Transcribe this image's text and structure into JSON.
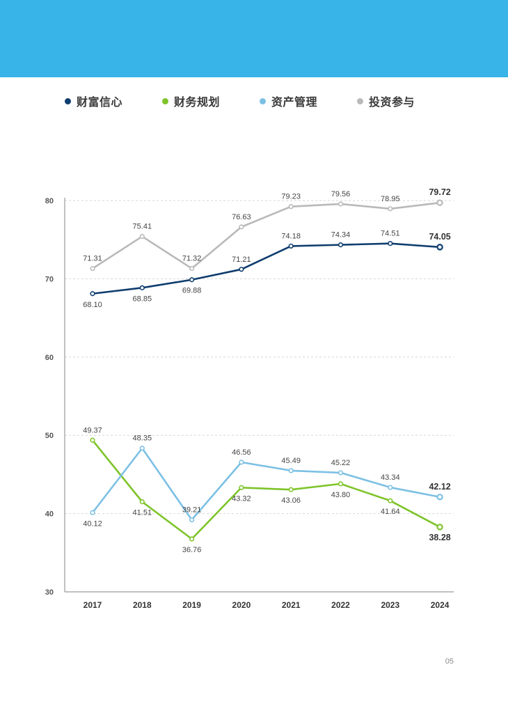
{
  "header": {
    "band_color": "#38b4e8"
  },
  "chart_data": {
    "type": "line",
    "title": "",
    "xlabel": "",
    "ylabel": "",
    "categories": [
      "2017",
      "2018",
      "2019",
      "2020",
      "2021",
      "2022",
      "2023",
      "2024"
    ],
    "ylim": [
      30,
      80
    ],
    "yticks": [
      "30",
      "40",
      "50",
      "60",
      "70",
      "80"
    ],
    "grid": "horizontal dashed",
    "legend_position": "top",
    "series": [
      {
        "name": "财富信心",
        "color": "#0f3d6e",
        "values": [
          68.1,
          68.85,
          69.88,
          71.21,
          74.18,
          74.34,
          74.51,
          74.05
        ],
        "labels": [
          "68.10",
          "68.85",
          "69.88",
          "71.21",
          "74.18",
          "74.34",
          "74.51",
          "74.05"
        ]
      },
      {
        "name": "财务规划",
        "color": "#7ec42a",
        "values": [
          49.37,
          41.51,
          36.76,
          43.32,
          43.06,
          43.8,
          41.64,
          38.28
        ],
        "labels": [
          "49.37",
          "41.51",
          "36.76",
          "43.32",
          "43.06",
          "43.80",
          "41.64",
          "38.28"
        ]
      },
      {
        "name": "资产管理",
        "color": "#7cc0e4",
        "values": [
          40.12,
          48.35,
          39.21,
          46.56,
          45.49,
          45.22,
          43.34,
          42.12
        ],
        "labels": [
          "40.12",
          "48.35",
          "39.21",
          "46.56",
          "45.49",
          "45.22",
          "43.34",
          "42.12"
        ]
      },
      {
        "name": "投资参与",
        "color": "#b9b9b9",
        "values": [
          71.31,
          75.41,
          71.32,
          76.63,
          79.23,
          79.56,
          78.95,
          79.72
        ],
        "labels": [
          "71.31",
          "75.41",
          "71.32",
          "76.63",
          "79.23",
          "79.56",
          "78.95",
          "79.72"
        ]
      }
    ]
  },
  "page": {
    "number": "05"
  }
}
